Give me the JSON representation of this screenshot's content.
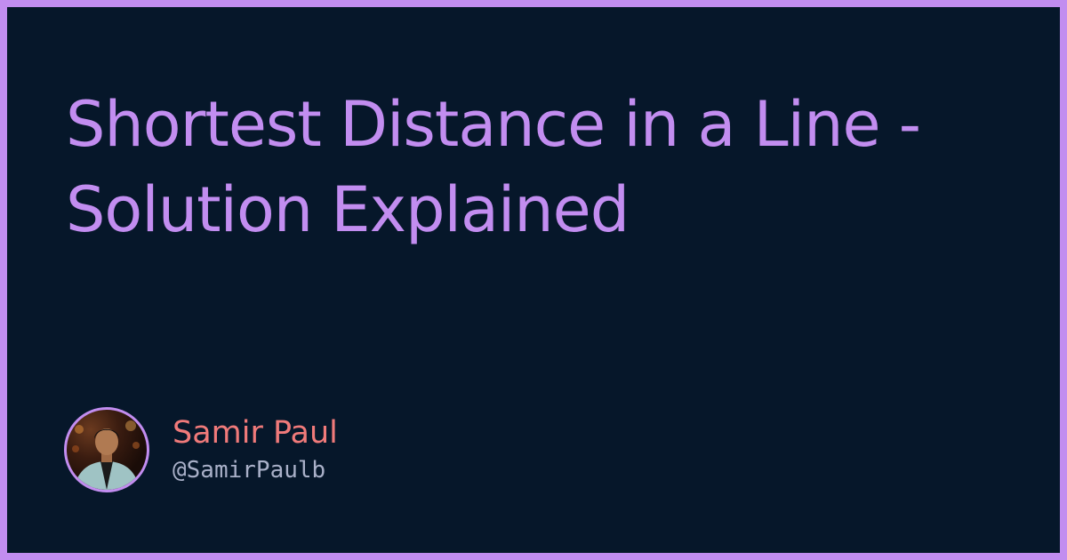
{
  "title": "Shortest Distance in a Line - Solution Explained",
  "author": {
    "name": "Samir Paul",
    "handle": "@SamirPaulb",
    "avatar": "avatar-photo"
  },
  "colors": {
    "border": "#c28df0",
    "background": "#06172a",
    "title": "#c28df0",
    "name": "#f07a7a",
    "handle": "#a9b0c8"
  }
}
